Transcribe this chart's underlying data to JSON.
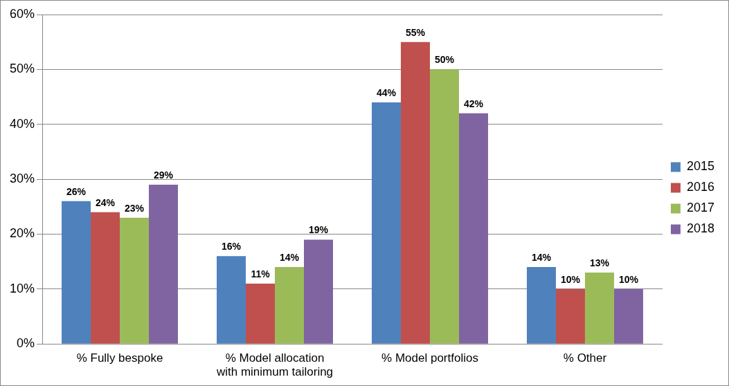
{
  "chart_data": {
    "type": "bar",
    "categories": [
      "% Fully bespoke",
      "% Model allocation with minimum tailoring",
      "% Model portfolios",
      "% Other"
    ],
    "series": [
      {
        "name": "2015",
        "color": "#4f81bd",
        "values": [
          26,
          16,
          44,
          14
        ],
        "value_labels": [
          "26%",
          "16%",
          "44%",
          "14%"
        ]
      },
      {
        "name": "2016",
        "color": "#c0504d",
        "values": [
          24,
          11,
          55,
          10
        ],
        "value_labels": [
          "24%",
          "11%",
          "55%",
          "10%"
        ]
      },
      {
        "name": "2017",
        "color": "#9bbb59",
        "values": [
          23,
          14,
          50,
          13
        ],
        "value_labels": [
          "23%",
          "14%",
          "50%",
          "13%"
        ]
      },
      {
        "name": "2018",
        "color": "#8064a2",
        "values": [
          29,
          19,
          42,
          10
        ],
        "value_labels": [
          "29%",
          "19%",
          "42%",
          "10%"
        ]
      }
    ],
    "ylim": [
      0,
      60
    ],
    "yticks": [
      {
        "value": 0,
        "label": "0%"
      },
      {
        "value": 10,
        "label": "10%"
      },
      {
        "value": 20,
        "label": "20%"
      },
      {
        "value": 30,
        "label": "30%"
      },
      {
        "value": 40,
        "label": "40%"
      },
      {
        "value": 50,
        "label": "50%"
      },
      {
        "value": 60,
        "label": "60%"
      }
    ],
    "grid": "y",
    "legend": "right"
  }
}
